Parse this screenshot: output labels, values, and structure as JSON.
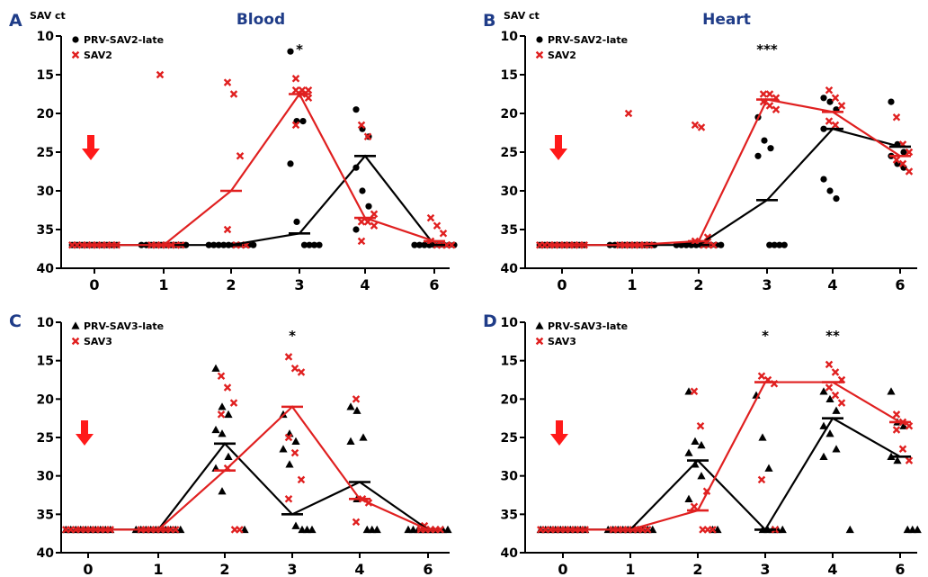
{
  "chart_data": [
    {
      "id": "A",
      "type": "scatter",
      "panel_letter": "A",
      "title": "Blood",
      "ylabel": "SAV ct",
      "ylim": [
        10,
        40
      ],
      "y_inverted": true,
      "yticks": [
        10,
        15,
        20,
        25,
        30,
        35,
        40
      ],
      "categories": [
        "0",
        "1",
        "2",
        "3",
        "4",
        "6"
      ],
      "arrow_at": "0",
      "significance": [
        {
          "category": "3",
          "label": "*"
        }
      ],
      "series": [
        {
          "name": "PRV-SAV2-late",
          "marker": "circle",
          "color": "#000000",
          "means": [
            37,
            37,
            37,
            35.5,
            25.5,
            37
          ],
          "points": [
            [
              37,
              37,
              37,
              37,
              37,
              37,
              37,
              37,
              37,
              37
            ],
            [
              37,
              37,
              37,
              37,
              37,
              37,
              37,
              37,
              37,
              37
            ],
            [
              37,
              37,
              37,
              37,
              37,
              37,
              37,
              37,
              37,
              37
            ],
            [
              12,
              21,
              21,
              26.5,
              34,
              37,
              37,
              37,
              37
            ],
            [
              19.5,
              22,
              23,
              27,
              30,
              32,
              35
            ],
            [
              37,
              37,
              37,
              37,
              37,
              37,
              37,
              37,
              37
            ]
          ]
        },
        {
          "name": "SAV2",
          "marker": "x",
          "color": "#e02020",
          "means": [
            37,
            37,
            30,
            17.5,
            33.5,
            36.5
          ],
          "points": [
            [
              37,
              37,
              37,
              37,
              37,
              37,
              37,
              37,
              37,
              37
            ],
            [
              15,
              37,
              37,
              37,
              37,
              37,
              37,
              37
            ],
            [
              16,
              17.5,
              25.5,
              35,
              37,
              37,
              37
            ],
            [
              15.5,
              17,
              17,
              17,
              17.5,
              18,
              21.5
            ],
            [
              21.5,
              23,
              33,
              34,
              34,
              34.5,
              36.5
            ],
            [
              33.5,
              34.5,
              35.5,
              36.5,
              37,
              37,
              37,
              37
            ]
          ]
        }
      ]
    },
    {
      "id": "B",
      "type": "scatter",
      "panel_letter": "B",
      "title": "Heart",
      "ylabel": "SAV ct",
      "ylim": [
        10,
        40
      ],
      "y_inverted": true,
      "yticks": [
        10,
        15,
        20,
        25,
        30,
        35,
        40
      ],
      "categories": [
        "0",
        "1",
        "2",
        "3",
        "4",
        "6"
      ],
      "arrow_at": "0",
      "significance": [
        {
          "category": "3",
          "label": "***"
        }
      ],
      "series": [
        {
          "name": "PRV-SAV2-late",
          "marker": "circle",
          "color": "#000000",
          "means": [
            37,
            37,
            37,
            31.2,
            22,
            24.3
          ],
          "points": [
            [
              37,
              37,
              37,
              37,
              37,
              37,
              37,
              37,
              37,
              37
            ],
            [
              37,
              37,
              37,
              37,
              37,
              37,
              37,
              37,
              37,
              37
            ],
            [
              37,
              37,
              37,
              37,
              37,
              37,
              37,
              37,
              37,
              37
            ],
            [
              20.5,
              23.5,
              24.5,
              25.5,
              37,
              37,
              37,
              37
            ],
            [
              18,
              18.5,
              19.5,
              28.5,
              30,
              31,
              22
            ],
            [
              18.5,
              24,
              25,
              25.5,
              26.5,
              27
            ]
          ]
        },
        {
          "name": "SAV2",
          "marker": "x",
          "color": "#e02020",
          "means": [
            37,
            37,
            36.5,
            18.2,
            19.8,
            25.5
          ],
          "points": [
            [
              37,
              37,
              37,
              37,
              37,
              37,
              37,
              37,
              37,
              37
            ],
            [
              20,
              37,
              37,
              37,
              37,
              37,
              37,
              37
            ],
            [
              21.5,
              21.8,
              36,
              36.5,
              37,
              37,
              37
            ],
            [
              17.5,
              17.5,
              18,
              18.5,
              19,
              19.5
            ],
            [
              17,
              18,
              19,
              21,
              21.5
            ],
            [
              20.5,
              24,
              25,
              26,
              26.5,
              27.5
            ]
          ]
        }
      ]
    },
    {
      "id": "C",
      "type": "scatter",
      "panel_letter": "C",
      "title": "",
      "ylabel": "",
      "ylim": [
        10,
        40
      ],
      "y_inverted": true,
      "yticks": [
        10,
        15,
        20,
        25,
        30,
        35,
        40
      ],
      "categories": [
        "0",
        "1",
        "2",
        "3",
        "4",
        "6"
      ],
      "arrow_at": "0",
      "significance": [
        {
          "category": "3",
          "label": "*"
        }
      ],
      "series": [
        {
          "name": "PRV-SAV3-late",
          "marker": "triangle",
          "color": "#000000",
          "means": [
            37,
            37,
            25.8,
            35,
            30.8,
            37
          ],
          "points": [
            [
              37,
              37,
              37,
              37,
              37,
              37,
              37,
              37,
              37,
              37
            ],
            [
              37,
              37,
              37,
              37,
              37,
              37,
              37,
              37,
              37,
              37
            ],
            [
              16,
              21,
              22,
              24,
              24.5,
              27.5,
              29,
              32,
              37
            ],
            [
              22,
              24.5,
              25.5,
              26.5,
              28.5,
              36.5,
              37,
              37,
              37
            ],
            [
              21,
              21.5,
              25,
              25.5,
              33,
              37,
              37,
              37
            ],
            [
              37,
              37,
              37,
              37,
              37,
              37,
              37,
              37,
              37
            ]
          ]
        },
        {
          "name": "SAV3",
          "marker": "x",
          "color": "#e02020",
          "means": [
            37,
            37,
            29.3,
            21,
            33,
            37
          ],
          "points": [
            [
              37,
              37,
              37,
              37,
              37,
              37,
              37,
              37,
              37,
              37
            ],
            [
              37,
              37,
              37,
              37,
              37,
              37,
              37,
              37
            ],
            [
              17,
              18.5,
              20.5,
              22,
              29,
              37,
              37
            ],
            [
              14.5,
              16,
              16.5,
              25,
              27,
              30.5,
              33
            ],
            [
              20,
              33,
              33.5,
              36
            ],
            [
              36.5,
              37,
              37,
              37,
              37,
              37
            ]
          ]
        }
      ]
    },
    {
      "id": "D",
      "type": "scatter",
      "panel_letter": "D",
      "title": "",
      "ylabel": "",
      "ylim": [
        10,
        40
      ],
      "y_inverted": true,
      "yticks": [
        10,
        15,
        20,
        25,
        30,
        35,
        40
      ],
      "categories": [
        "0",
        "1",
        "2",
        "3",
        "4",
        "6"
      ],
      "arrow_at": "0",
      "significance": [
        {
          "category": "3",
          "label": "*"
        },
        {
          "category": "4",
          "label": "**"
        }
      ],
      "series": [
        {
          "name": "PRV-SAV3-late",
          "marker": "triangle",
          "color": "#000000",
          "means": [
            37,
            37,
            28,
            37,
            22.5,
            27.5
          ],
          "points": [
            [
              37,
              37,
              37,
              37,
              37,
              37,
              37,
              37,
              37,
              37
            ],
            [
              37,
              37,
              37,
              37,
              37,
              37,
              37,
              37,
              37,
              37
            ],
            [
              19,
              25.5,
              26,
              27,
              28.5,
              30,
              33,
              37,
              37
            ],
            [
              19.5,
              25,
              29,
              37,
              37,
              37,
              37,
              37
            ],
            [
              19,
              20,
              21.5,
              23.5,
              24.5,
              26.5,
              27.5,
              37
            ],
            [
              19,
              23,
              23.5,
              27.5,
              28,
              37,
              37,
              37
            ]
          ]
        },
        {
          "name": "SAV3",
          "marker": "x",
          "color": "#e02020",
          "means": [
            37,
            37,
            34.5,
            17.8,
            17.8,
            23
          ],
          "points": [
            [
              37,
              37,
              37,
              37,
              37,
              37,
              37,
              37,
              37,
              37
            ],
            [
              37,
              37,
              37,
              37,
              37,
              37,
              37,
              37
            ],
            [
              19,
              23.5,
              32,
              34,
              37,
              37,
              37
            ],
            [
              17,
              17.5,
              18,
              30.5,
              37
            ],
            [
              15.5,
              16.5,
              17.5,
              18.5,
              19.5,
              20.5
            ],
            [
              22,
              23,
              23.5,
              24,
              26.5,
              28
            ]
          ]
        }
      ]
    }
  ]
}
